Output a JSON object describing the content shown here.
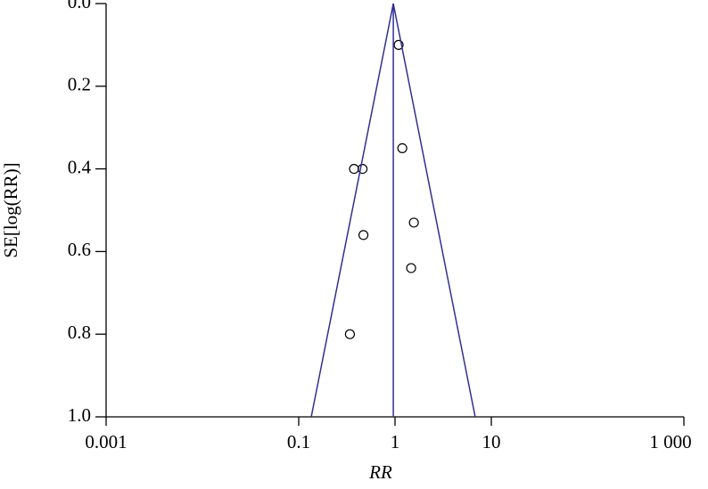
{
  "chart_data": {
    "type": "scatter",
    "x_label": "RR",
    "y_label": "SE[log(RR)]",
    "x_log": true,
    "xlim": [
      0.001,
      1000
    ],
    "ylim": [
      1.0,
      0.0
    ],
    "xticks": [
      0.001,
      0.1,
      1,
      10,
      {
        "value": 1000,
        "label": "1 000"
      }
    ],
    "yticks": [
      {
        "value": 0,
        "label": "0.0"
      },
      0.2,
      0.4,
      0.6,
      0.8,
      {
        "value": 1,
        "label": "1.0"
      }
    ],
    "series": [
      {
        "type": "scatter",
        "color": "#000000",
        "x": [
          1.09,
          1.19,
          0.375,
          0.46,
          1.57,
          0.47,
          1.47,
          0.34
        ],
        "values": [
          0.1,
          0.35,
          0.4,
          0.4,
          0.53,
          0.56,
          0.64,
          0.8
        ]
      },
      {
        "type": "line",
        "color": "#2e3192",
        "x": [
          0.135,
          0.96,
          6.8
        ],
        "values": [
          1.0,
          0.0,
          1.0
        ]
      },
      {
        "type": "line",
        "color": "#2e3192",
        "x": [
          0.96,
          0.96
        ],
        "values": [
          0.0,
          1.0
        ]
      }
    ]
  }
}
